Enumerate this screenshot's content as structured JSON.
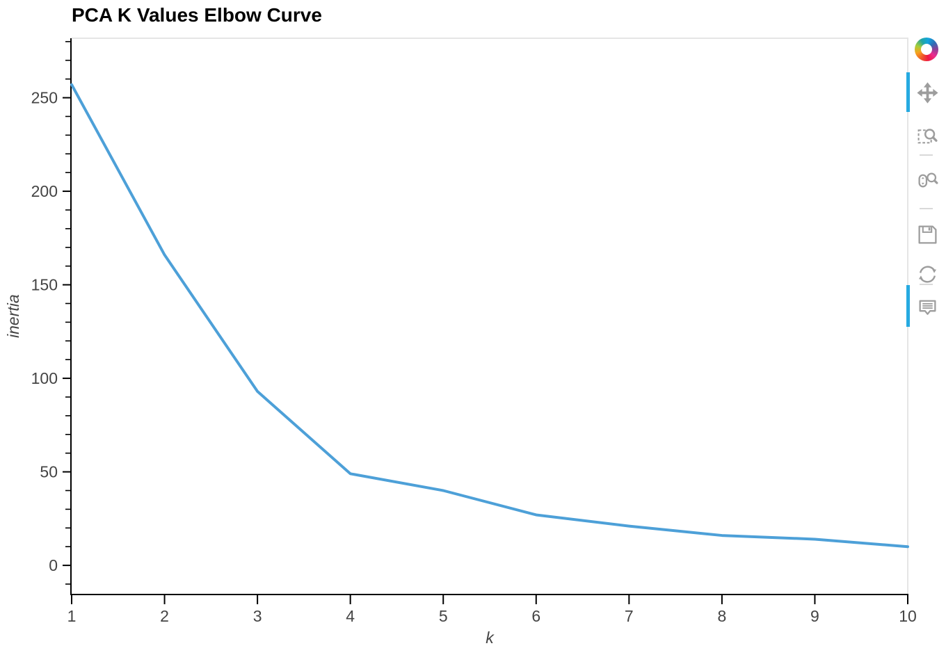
{
  "chart_data": {
    "type": "line",
    "title": "PCA K Values Elbow Curve",
    "xlabel": "k",
    "ylabel": "inertia",
    "x": [
      1,
      2,
      3,
      4,
      5,
      6,
      7,
      8,
      9,
      10
    ],
    "y": [
      257,
      166,
      93,
      49,
      40,
      27,
      21,
      16,
      14,
      10
    ],
    "x_ticks": [
      1,
      2,
      3,
      4,
      5,
      6,
      7,
      8,
      9,
      10
    ],
    "y_ticks": [
      0,
      50,
      100,
      150,
      200,
      250
    ],
    "y_minor_step": 10,
    "x_range": [
      1,
      10
    ],
    "y_range": [
      -15.2,
      281.8
    ],
    "grid": false,
    "legend_position": "none",
    "line_color": "#4da0d8",
    "axis_color": "#000000",
    "tick_label_color": "#444444",
    "frame_border_color": "#e5e5e5"
  },
  "toolbar": {
    "active_color": "#26aae1",
    "icon_color": "#9d9d9d",
    "logo": "bokeh-logo",
    "tools": [
      {
        "name": "pan",
        "icon": "pan-icon",
        "active": true
      },
      {
        "name": "box-zoom",
        "icon": "box-zoom-icon",
        "active": false
      },
      {
        "name": "wheel-zoom",
        "icon": "wheel-zoom-icon",
        "active": false
      },
      {
        "name": "save",
        "icon": "save-icon",
        "active": false
      },
      {
        "name": "reset",
        "icon": "reset-icon",
        "active": false
      },
      {
        "name": "hover",
        "icon": "hover-icon",
        "active": true
      }
    ]
  }
}
